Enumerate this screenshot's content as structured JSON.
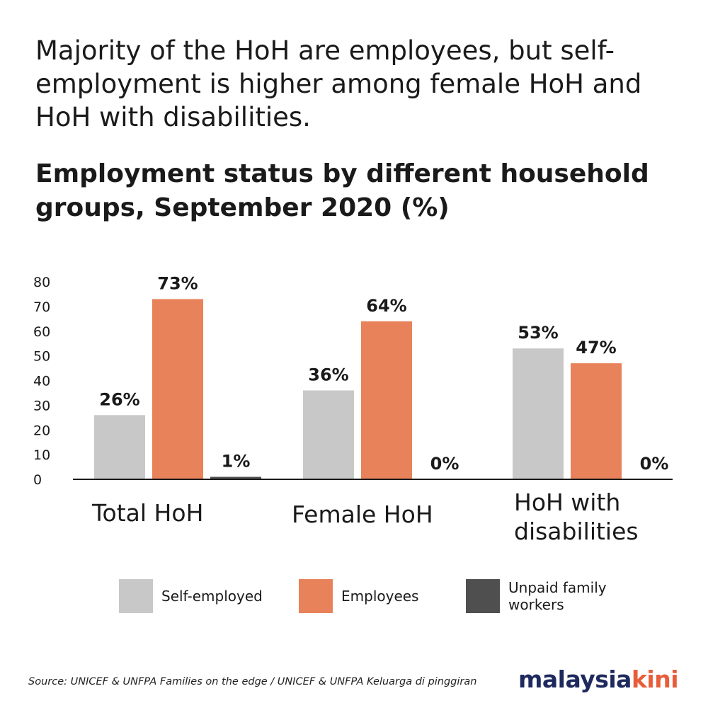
{
  "headline": "Majority of the HoH are employees, but self-employment is higher among female HoH and HoH with disabilities.",
  "chart_data": {
    "type": "bar",
    "title": "Employment status by different household groups, September 2020 (%)",
    "categories": [
      "Total HoH",
      "Female HoH",
      "HoH with disabilities"
    ],
    "series": [
      {
        "name": "Self-employed",
        "values": [
          26,
          36,
          53
        ],
        "labels": [
          "26%",
          "36%",
          "53%"
        ],
        "color": "#c8c8c8"
      },
      {
        "name": "Employees",
        "values": [
          73,
          64,
          47
        ],
        "labels": [
          "73%",
          "64%",
          "47%"
        ],
        "color": "#e8825a"
      },
      {
        "name": "Unpaid family workers",
        "values": [
          1,
          0,
          0
        ],
        "labels": [
          "1%",
          "0%",
          "0%"
        ],
        "color": "#4f4f4f"
      }
    ],
    "ylim": [
      0,
      80
    ],
    "yticks": [
      0,
      10,
      20,
      30,
      40,
      50,
      60,
      70,
      80
    ],
    "grid": false,
    "legend_position": "bottom"
  },
  "legend": {
    "self_employed": "Self-employed",
    "employees": "Employees",
    "unpaid_line1": "Unpaid family",
    "unpaid_line2": "workers"
  },
  "source": "Source: UNICEF & UNFPA Families on the edge / UNICEF & UNFPA Keluarga di pinggiran",
  "brand": {
    "part1": "malaysia",
    "part2": "kini",
    "color_primary": "#1e2a5e",
    "color_accent": "#e85d3a"
  }
}
